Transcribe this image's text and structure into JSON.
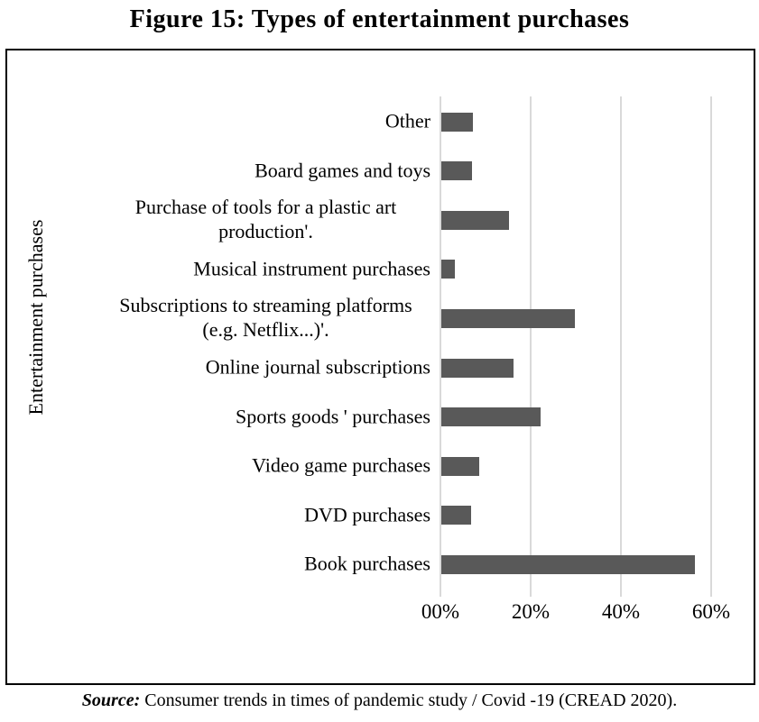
{
  "figure_title": "Figure 15: Types of entertainment purchases",
  "source": {
    "prefix": "Source:",
    "text": " Consumer trends in times of pandemic study / Covid -19 (CREAD 2020)."
  },
  "chart_data": {
    "type": "bar",
    "orientation": "horizontal",
    "title": "Figure 15: Types of entertainment purchases",
    "ylabel": "Entertainment purchases",
    "xlabel": "",
    "categories": [
      "Other",
      "Board games and toys",
      "Purchase of tools for a plastic art production'.",
      "Musical instrument purchases",
      "Subscriptions to streaming platforms (e.g. Netflix...)'.",
      "Online journal subscriptions",
      "Sports goods ' purchases",
      "Video game purchases",
      "DVD purchases",
      "Book purchases"
    ],
    "values": [
      7,
      6.7,
      15,
      3,
      29.6,
      16,
      21.9,
      8.4,
      6.6,
      56.2
    ],
    "unit": "%",
    "x_axis": {
      "labels": [
        "00%",
        "20%",
        "40%",
        "60%"
      ],
      "values": [
        0,
        20,
        40,
        60
      ]
    },
    "xlim": [
      0,
      70
    ],
    "grid": true,
    "legend": false,
    "bar_color": "#595959",
    "gridline_color": "#d9d9d9"
  }
}
